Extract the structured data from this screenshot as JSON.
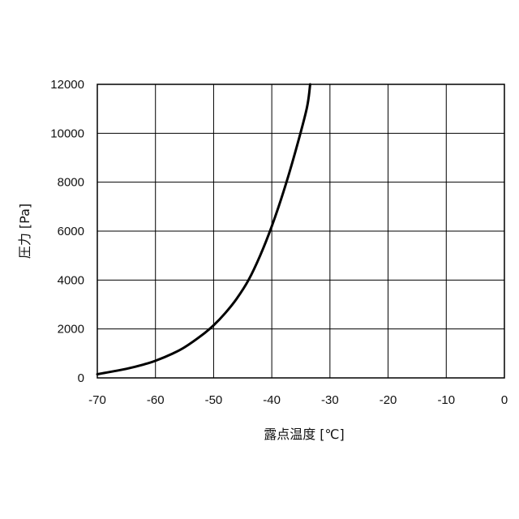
{
  "chart_data": {
    "type": "line",
    "title": "",
    "xlabel": "露点温度 [℃]",
    "ylabel": "圧力 [Pa]",
    "xlim": [
      -70,
      0
    ],
    "ylim": [
      0,
      12000
    ],
    "x_ticks": [
      -70,
      -60,
      -50,
      -40,
      -30,
      -20,
      -10,
      0
    ],
    "y_ticks": [
      0,
      2000,
      4000,
      6000,
      8000,
      10000,
      12000
    ],
    "grid": true,
    "legend": "none",
    "line_color": "#000000",
    "series": [
      {
        "x": [
          -70,
          -67,
          -65,
          -62,
          -60,
          -57,
          -55,
          -52,
          -50,
          -48,
          -46,
          -44,
          -42,
          -40,
          -38,
          -36,
          -34,
          -33.4
        ],
        "y": [
          150,
          280,
          370,
          550,
          700,
          1000,
          1250,
          1750,
          2150,
          2650,
          3250,
          4000,
          5000,
          6200,
          7600,
          9200,
          11000,
          12000
        ]
      }
    ]
  }
}
